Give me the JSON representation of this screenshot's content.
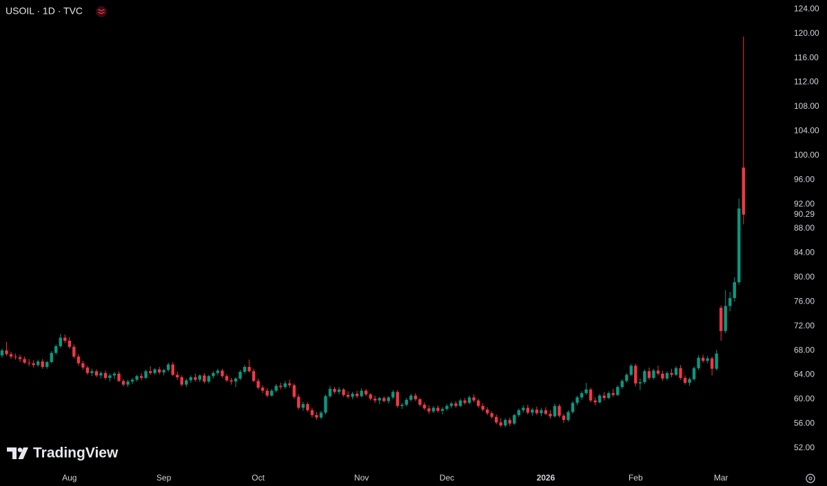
{
  "chart_data": {
    "type": "candlestick",
    "title": "USOIL · 1D · TVC",
    "brand": "TradingView",
    "up_color": "#089981",
    "down_color": "#f23645",
    "ylim": [
      48.7,
      125.5
    ],
    "yticks": [
      {
        "value": 124,
        "label": "124.00"
      },
      {
        "value": 120,
        "label": "120.00"
      },
      {
        "value": 116,
        "label": "116.00"
      },
      {
        "value": 112,
        "label": "112.00"
      },
      {
        "value": 108,
        "label": "108.00"
      },
      {
        "value": 104,
        "label": "104.00"
      },
      {
        "value": 100,
        "label": "100.00"
      },
      {
        "value": 96,
        "label": "96.00"
      },
      {
        "value": 92,
        "label": "92.00"
      },
      {
        "value": 88,
        "label": "88.00"
      },
      {
        "value": 84,
        "label": "84.00"
      },
      {
        "value": 80,
        "label": "80.00"
      },
      {
        "value": 76,
        "label": "76.00"
      },
      {
        "value": 72,
        "label": "72.00"
      },
      {
        "value": 68,
        "label": "68.00"
      },
      {
        "value": 64,
        "label": "64.00"
      },
      {
        "value": 60,
        "label": "60.00"
      },
      {
        "value": 56,
        "label": "56.00"
      },
      {
        "value": 52,
        "label": "52.00"
      }
    ],
    "categories": [
      null,
      null,
      null,
      null,
      null,
      null,
      null,
      null,
      null,
      null,
      null,
      null,
      null,
      null,
      null,
      "Aug",
      null,
      null,
      null,
      null,
      null,
      null,
      null,
      null,
      null,
      null,
      null,
      null,
      null,
      null,
      null,
      null,
      null,
      null,
      null,
      null,
      "Sep",
      null,
      null,
      null,
      null,
      null,
      null,
      null,
      null,
      null,
      null,
      null,
      null,
      null,
      null,
      null,
      null,
      null,
      null,
      null,
      null,
      "Oct",
      null,
      null,
      null,
      null,
      null,
      null,
      null,
      null,
      null,
      null,
      null,
      null,
      null,
      null,
      null,
      null,
      null,
      null,
      null,
      null,
      null,
      null,
      "Nov",
      null,
      null,
      null,
      null,
      null,
      null,
      null,
      null,
      null,
      null,
      null,
      null,
      null,
      null,
      null,
      null,
      null,
      null,
      "Dec",
      null,
      null,
      null,
      null,
      null,
      null,
      null,
      null,
      null,
      null,
      null,
      null,
      null,
      null,
      null,
      null,
      null,
      null,
      null,
      null,
      null,
      "2026",
      null,
      null,
      null,
      null,
      null,
      null,
      null,
      null,
      null,
      null,
      null,
      null,
      null,
      null,
      null,
      null,
      null,
      null,
      null,
      "Feb",
      null,
      null,
      null,
      null,
      null,
      null,
      null,
      null,
      null,
      null,
      null,
      null,
      null,
      null,
      null,
      null,
      null,
      null,
      "Mar",
      null,
      null,
      null,
      null,
      null
    ],
    "ohlc": [
      [
        67.2,
        68.3,
        66.8,
        68.0
      ],
      [
        68.0,
        69.4,
        67.1,
        67.4
      ],
      [
        67.4,
        67.8,
        66.6,
        67.0
      ],
      [
        67.0,
        67.5,
        66.5,
        66.9
      ],
      [
        66.9,
        67.3,
        66.1,
        66.6
      ],
      [
        66.6,
        67.0,
        65.8,
        66.0
      ],
      [
        66.0,
        66.6,
        65.4,
        65.9
      ],
      [
        65.9,
        66.4,
        65.2,
        65.6
      ],
      [
        65.6,
        66.5,
        65.3,
        66.2
      ],
      [
        66.2,
        66.6,
        65.0,
        65.3
      ],
      [
        65.3,
        66.3,
        65.0,
        66.1
      ],
      [
        66.1,
        67.9,
        65.9,
        67.6
      ],
      [
        67.6,
        69.0,
        67.3,
        68.7
      ],
      [
        68.7,
        70.7,
        68.4,
        70.1
      ],
      [
        70.1,
        70.6,
        69.2,
        69.6
      ],
      [
        69.6,
        70.2,
        68.3,
        68.6
      ],
      [
        68.6,
        69.0,
        66.7,
        67.0
      ],
      [
        67.0,
        67.4,
        65.5,
        65.9
      ],
      [
        65.9,
        66.3,
        64.8,
        65.2
      ],
      [
        65.2,
        65.5,
        64.0,
        64.3
      ],
      [
        64.3,
        65.0,
        63.8,
        64.6
      ],
      [
        64.6,
        64.9,
        63.6,
        63.9
      ],
      [
        63.9,
        64.6,
        63.4,
        64.3
      ],
      [
        64.3,
        64.7,
        63.2,
        63.5
      ],
      [
        63.5,
        64.2,
        62.9,
        63.9
      ],
      [
        63.9,
        64.5,
        63.3,
        64.2
      ],
      [
        64.2,
        64.6,
        62.8,
        63.0
      ],
      [
        63.0,
        63.3,
        62.1,
        62.4
      ],
      [
        62.4,
        63.2,
        62.0,
        62.9
      ],
      [
        62.9,
        63.5,
        62.5,
        63.2
      ],
      [
        63.2,
        64.0,
        62.9,
        63.8
      ],
      [
        63.8,
        64.3,
        63.1,
        63.5
      ],
      [
        63.5,
        64.9,
        63.3,
        64.6
      ],
      [
        64.6,
        65.4,
        64.0,
        64.3
      ],
      [
        64.3,
        65.1,
        64.0,
        64.9
      ],
      [
        64.9,
        65.3,
        64.1,
        64.4
      ],
      [
        64.4,
        65.0,
        63.9,
        64.8
      ],
      [
        64.8,
        66.0,
        64.5,
        65.7
      ],
      [
        65.7,
        66.1,
        63.8,
        64.0
      ],
      [
        64.0,
        64.5,
        63.2,
        63.6
      ],
      [
        63.6,
        63.9,
        62.1,
        62.4
      ],
      [
        62.4,
        63.4,
        62.0,
        63.1
      ],
      [
        63.1,
        63.9,
        62.7,
        63.6
      ],
      [
        63.6,
        64.2,
        62.9,
        63.2
      ],
      [
        63.2,
        64.1,
        62.8,
        63.9
      ],
      [
        63.9,
        64.3,
        62.6,
        62.9
      ],
      [
        62.9,
        64.0,
        62.6,
        63.8
      ],
      [
        63.8,
        64.6,
        63.4,
        64.3
      ],
      [
        64.3,
        65.0,
        63.9,
        64.7
      ],
      [
        64.7,
        65.0,
        63.5,
        63.8
      ],
      [
        63.8,
        64.1,
        62.8,
        63.1
      ],
      [
        63.1,
        63.5,
        62.4,
        62.9
      ],
      [
        62.9,
        63.6,
        62.0,
        63.4
      ],
      [
        63.4,
        64.8,
        63.1,
        64.5
      ],
      [
        64.5,
        65.6,
        64.2,
        65.3
      ],
      [
        65.3,
        66.5,
        64.4,
        64.6
      ],
      [
        64.6,
        65.0,
        62.8,
        63.0
      ],
      [
        63.0,
        63.4,
        61.6,
        61.9
      ],
      [
        61.9,
        62.3,
        61.0,
        61.4
      ],
      [
        61.4,
        61.8,
        60.3,
        60.6
      ],
      [
        60.6,
        61.7,
        60.4,
        61.4
      ],
      [
        61.4,
        62.5,
        61.1,
        62.2
      ],
      [
        62.2,
        62.7,
        61.6,
        62.0
      ],
      [
        62.0,
        63.0,
        61.7,
        62.6
      ],
      [
        62.6,
        63.2,
        61.9,
        62.3
      ],
      [
        62.3,
        62.6,
        60.1,
        60.4
      ],
      [
        60.4,
        60.8,
        58.3,
        58.6
      ],
      [
        58.6,
        59.6,
        58.1,
        59.2
      ],
      [
        59.2,
        59.5,
        57.9,
        58.2
      ],
      [
        58.2,
        58.6,
        57.0,
        57.4
      ],
      [
        57.4,
        57.9,
        56.6,
        57.0
      ],
      [
        57.0,
        58.1,
        56.7,
        57.8
      ],
      [
        57.8,
        60.8,
        57.5,
        60.5
      ],
      [
        60.5,
        62.2,
        60.2,
        61.7
      ],
      [
        61.7,
        62.0,
        60.9,
        61.2
      ],
      [
        61.2,
        62.0,
        60.8,
        61.6
      ],
      [
        61.6,
        61.8,
        60.4,
        60.7
      ],
      [
        60.7,
        61.3,
        60.1,
        60.4
      ],
      [
        60.4,
        61.2,
        60.0,
        60.9
      ],
      [
        60.9,
        61.4,
        60.2,
        60.5
      ],
      [
        60.5,
        61.8,
        60.3,
        61.4
      ],
      [
        61.4,
        61.7,
        60.5,
        60.8
      ],
      [
        60.8,
        61.0,
        59.8,
        60.1
      ],
      [
        60.1,
        60.6,
        59.4,
        59.8
      ],
      [
        59.8,
        60.4,
        59.2,
        60.2
      ],
      [
        60.2,
        60.5,
        59.5,
        59.7
      ],
      [
        59.7,
        60.5,
        59.3,
        60.3
      ],
      [
        60.3,
        61.5,
        60.0,
        61.2
      ],
      [
        61.2,
        61.5,
        58.6,
        58.9
      ],
      [
        58.9,
        59.4,
        58.4,
        59.1
      ],
      [
        59.1,
        60.2,
        58.8,
        59.9
      ],
      [
        59.9,
        60.9,
        59.6,
        60.6
      ],
      [
        60.6,
        61.0,
        59.7,
        60.0
      ],
      [
        60.0,
        60.2,
        58.8,
        59.1
      ],
      [
        59.1,
        59.5,
        58.2,
        58.5
      ],
      [
        58.5,
        59.0,
        57.6,
        58.0
      ],
      [
        58.0,
        58.9,
        57.7,
        58.6
      ],
      [
        58.6,
        59.0,
        57.8,
        58.1
      ],
      [
        58.1,
        58.7,
        57.5,
        58.4
      ],
      [
        58.4,
        59.2,
        58.1,
        58.9
      ],
      [
        58.9,
        59.6,
        58.5,
        59.3
      ],
      [
        59.3,
        59.7,
        58.6,
        58.9
      ],
      [
        58.9,
        60.1,
        58.7,
        59.8
      ],
      [
        59.8,
        60.2,
        59.1,
        59.4
      ],
      [
        59.4,
        60.6,
        59.2,
        60.3
      ],
      [
        60.3,
        60.8,
        59.5,
        59.8
      ],
      [
        59.8,
        60.1,
        58.6,
        58.9
      ],
      [
        58.9,
        59.3,
        58.0,
        58.3
      ],
      [
        58.3,
        58.7,
        57.4,
        57.7
      ],
      [
        57.7,
        58.0,
        56.8,
        57.1
      ],
      [
        57.1,
        57.5,
        55.9,
        56.2
      ],
      [
        56.2,
        56.9,
        55.4,
        55.7
      ],
      [
        55.7,
        56.9,
        55.4,
        56.6
      ],
      [
        56.6,
        57.0,
        55.6,
        56.0
      ],
      [
        56.0,
        57.6,
        55.8,
        57.4
      ],
      [
        57.4,
        58.5,
        57.1,
        58.2
      ],
      [
        58.2,
        59.0,
        57.8,
        58.6
      ],
      [
        58.6,
        59.1,
        57.5,
        57.8
      ],
      [
        57.8,
        58.6,
        57.3,
        58.3
      ],
      [
        58.3,
        58.8,
        57.4,
        57.7
      ],
      [
        57.7,
        58.6,
        57.2,
        58.2
      ],
      [
        58.2,
        58.7,
        57.4,
        57.6
      ],
      [
        57.6,
        58.2,
        56.8,
        57.2
      ],
      [
        57.2,
        59.3,
        57.0,
        58.9
      ],
      [
        58.9,
        59.2,
        57.0,
        57.3
      ],
      [
        57.3,
        57.6,
        56.1,
        56.6
      ],
      [
        56.6,
        58.2,
        56.3,
        57.9
      ],
      [
        57.9,
        59.7,
        57.6,
        59.4
      ],
      [
        59.4,
        60.6,
        59.0,
        60.3
      ],
      [
        60.3,
        61.3,
        59.9,
        61.0
      ],
      [
        61.0,
        62.7,
        60.7,
        61.6
      ],
      [
        61.6,
        61.9,
        59.5,
        59.8
      ],
      [
        59.8,
        60.3,
        59.0,
        59.5
      ],
      [
        59.5,
        60.9,
        59.3,
        60.6
      ],
      [
        60.6,
        61.2,
        59.8,
        60.2
      ],
      [
        60.2,
        61.3,
        60.0,
        61.0
      ],
      [
        61.0,
        61.7,
        60.4,
        60.7
      ],
      [
        60.7,
        62.3,
        60.5,
        62.0
      ],
      [
        62.0,
        63.3,
        61.7,
        63.0
      ],
      [
        63.0,
        64.3,
        62.7,
        64.0
      ],
      [
        64.0,
        65.8,
        63.8,
        65.5
      ],
      [
        65.5,
        65.8,
        62.1,
        62.6
      ],
      [
        62.6,
        63.4,
        61.5,
        62.8
      ],
      [
        62.8,
        64.9,
        62.5,
        64.6
      ],
      [
        64.6,
        65.2,
        63.2,
        63.5
      ],
      [
        63.5,
        65.0,
        63.2,
        64.7
      ],
      [
        64.7,
        65.5,
        63.9,
        64.2
      ],
      [
        64.2,
        64.7,
        63.0,
        63.4
      ],
      [
        63.4,
        64.6,
        63.1,
        64.3
      ],
      [
        64.3,
        65.0,
        63.6,
        64.0
      ],
      [
        64.0,
        65.4,
        63.8,
        65.1
      ],
      [
        65.1,
        65.6,
        63.2,
        63.5
      ],
      [
        63.5,
        63.9,
        62.4,
        62.7
      ],
      [
        62.7,
        63.6,
        62.2,
        63.3
      ],
      [
        63.3,
        65.4,
        63.0,
        65.1
      ],
      [
        65.1,
        67.2,
        64.8,
        66.8
      ],
      [
        66.8,
        67.3,
        66.0,
        66.3
      ],
      [
        66.3,
        67.1,
        65.9,
        66.7
      ],
      [
        66.7,
        67.0,
        63.9,
        65.0
      ],
      [
        65.0,
        68.1,
        64.7,
        67.5
      ],
      [
        75.0,
        75.4,
        69.6,
        71.2
      ],
      [
        71.2,
        77.9,
        70.8,
        75.3
      ],
      [
        75.3,
        77.6,
        74.4,
        76.6
      ],
      [
        76.6,
        80.0,
        76.0,
        79.2
      ],
      [
        79.2,
        92.9,
        78.8,
        91.3
      ],
      [
        98.0,
        119.5,
        88.7,
        90.29
      ]
    ]
  }
}
